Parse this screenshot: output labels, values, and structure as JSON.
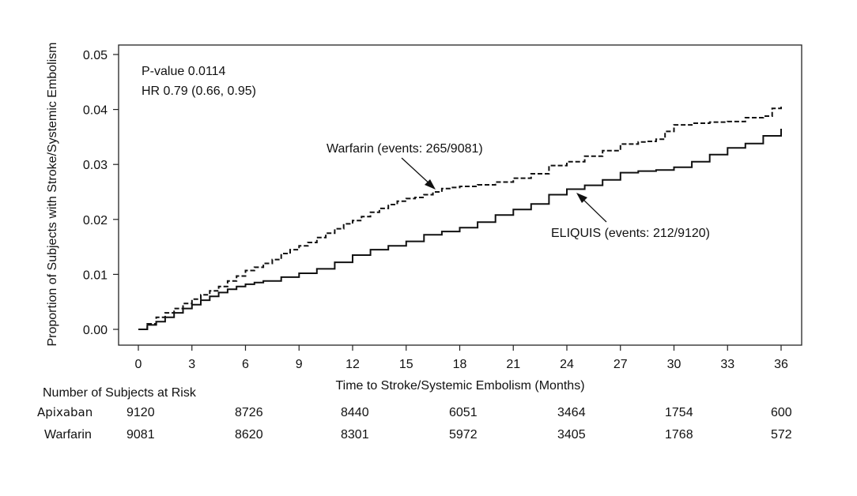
{
  "chart_data": {
    "type": "line",
    "xlabel": "Time to Stroke/Systemic Embolism (Months)",
    "ylabel": "Proportion of Subjects with Stroke/Systemic Embolism",
    "xlim": [
      0,
      36
    ],
    "ylim": [
      0,
      0.05
    ],
    "xticks": [
      0,
      3,
      6,
      9,
      12,
      15,
      18,
      21,
      24,
      27,
      30,
      33,
      36
    ],
    "yticks": [
      "0.00",
      "0.01",
      "0.02",
      "0.03",
      "0.04",
      "0.05"
    ],
    "annotations": {
      "pvalue": "P-value 0.0114",
      "hr": "HR 0.79 (0.66, 0.95)",
      "warfarin_label": "Warfarin  (events: 265/9081)",
      "eliquis_label": "ELIQUIS  (events: 212/9120)"
    },
    "series": [
      {
        "name": "Warfarin",
        "style": "dashed",
        "x": [
          0,
          0.5,
          1,
          1.5,
          2,
          2.5,
          3,
          3.5,
          4,
          4.5,
          5,
          5.5,
          6,
          6.5,
          7,
          7.5,
          8,
          8.5,
          9,
          9.5,
          10,
          10.5,
          11,
          11.5,
          12,
          12.5,
          13,
          13.5,
          14,
          14.5,
          15,
          15.5,
          16,
          16.5,
          17,
          17.5,
          18,
          19,
          20,
          21,
          22,
          23,
          24,
          25,
          26,
          27,
          28,
          28.5,
          29,
          29.5,
          30,
          31,
          32,
          33,
          34,
          35,
          35.5,
          36
        ],
        "values": [
          0.0,
          0.001,
          0.0022,
          0.003,
          0.0038,
          0.0047,
          0.0055,
          0.0063,
          0.007,
          0.0078,
          0.0088,
          0.0097,
          0.0107,
          0.0113,
          0.012,
          0.0127,
          0.0138,
          0.0145,
          0.0152,
          0.0158,
          0.0167,
          0.0175,
          0.0183,
          0.0192,
          0.0198,
          0.0205,
          0.0213,
          0.022,
          0.0227,
          0.0233,
          0.0238,
          0.024,
          0.0245,
          0.025,
          0.0256,
          0.0258,
          0.026,
          0.0263,
          0.0268,
          0.0275,
          0.0283,
          0.0298,
          0.0305,
          0.0315,
          0.0325,
          0.0337,
          0.0341,
          0.0342,
          0.0346,
          0.036,
          0.0372,
          0.0375,
          0.0377,
          0.0378,
          0.0385,
          0.0388,
          0.0402,
          0.0405
        ]
      },
      {
        "name": "ELIQUIS",
        "style": "solid",
        "x": [
          0,
          0.5,
          1,
          1.5,
          2,
          2.5,
          3,
          3.5,
          4,
          4.5,
          5,
          5.5,
          6,
          6.5,
          7,
          8,
          9,
          10,
          11,
          12,
          13,
          14,
          15,
          16,
          17,
          18,
          19,
          20,
          21,
          22,
          23,
          24,
          25,
          26,
          27,
          28,
          29,
          30,
          31,
          32,
          33,
          34,
          35,
          36
        ],
        "values": [
          0.0,
          0.0008,
          0.0014,
          0.0022,
          0.003,
          0.0038,
          0.0045,
          0.0053,
          0.006,
          0.0067,
          0.0073,
          0.0078,
          0.0082,
          0.0085,
          0.0088,
          0.0095,
          0.0102,
          0.011,
          0.0122,
          0.0135,
          0.0145,
          0.0152,
          0.016,
          0.0172,
          0.0178,
          0.0185,
          0.0195,
          0.0208,
          0.0218,
          0.0228,
          0.0245,
          0.0255,
          0.0262,
          0.0272,
          0.0285,
          0.0288,
          0.029,
          0.0295,
          0.0305,
          0.0318,
          0.033,
          0.0338,
          0.0352,
          0.0365
        ]
      }
    ]
  },
  "risk_table": {
    "title": "Number of Subjects at Risk",
    "rows": [
      {
        "label": "Apixaban",
        "values": [
          "9120",
          "8726",
          "8440",
          "6051",
          "3464",
          "1754",
          "600"
        ]
      },
      {
        "label": "Warfarin",
        "values": [
          "9081",
          "8620",
          "8301",
          "5972",
          "3405",
          "1768",
          "572"
        ]
      }
    ]
  }
}
